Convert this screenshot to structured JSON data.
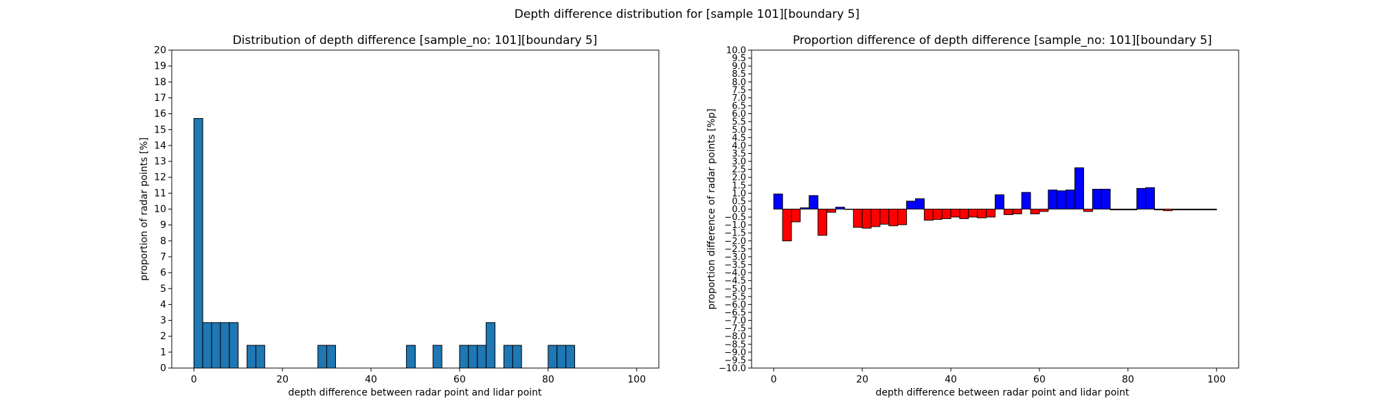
{
  "figure": {
    "suptitle": "Depth difference distribution for [sample 101][boundary 5]"
  },
  "chart_data": [
    {
      "type": "bar",
      "title": "Distribution of depth difference [sample_no: 101][boundary 5]",
      "xlabel": "depth difference between radar point and lidar point",
      "ylabel": "proportion of radar points [%]",
      "xlim": [
        -5,
        105
      ],
      "ylim": [
        0,
        20
      ],
      "xticks": [
        0,
        20,
        40,
        60,
        80,
        100
      ],
      "yticks": [
        0,
        1,
        2,
        3,
        4,
        5,
        6,
        7,
        8,
        9,
        10,
        11,
        12,
        13,
        14,
        15,
        16,
        17,
        18,
        19,
        20
      ],
      "bin_width": 2,
      "grid": false,
      "colors": {
        "bar": "#1f77b4",
        "edge": "#000000"
      },
      "bins": [
        0,
        2,
        4,
        6,
        8,
        12,
        14,
        28,
        30,
        48,
        54,
        60,
        62,
        64,
        66,
        70,
        72,
        80,
        82,
        84
      ],
      "values": [
        15.7,
        2.86,
        2.86,
        2.86,
        2.86,
        1.43,
        1.43,
        1.43,
        1.43,
        1.43,
        1.43,
        1.43,
        1.43,
        1.43,
        2.86,
        1.43,
        1.43,
        1.43,
        1.43,
        1.43
      ]
    },
    {
      "type": "bar",
      "title": "Proportion difference of depth difference [sample_no: 101][boundary 5]",
      "xlabel": "depth difference between radar point and lidar point",
      "ylabel": "proportion difference of radar points [%p]",
      "xlim": [
        -5,
        105
      ],
      "ylim": [
        -10,
        10
      ],
      "xticks": [
        0,
        20,
        40,
        60,
        80,
        100
      ],
      "ytick_step": 0.5,
      "bin_width": 2,
      "grid": false,
      "colors": {
        "positive": "#0000ff",
        "negative": "#ff0000",
        "edge": "#000000"
      },
      "bins": [
        0,
        2,
        4,
        6,
        8,
        10,
        12,
        14,
        16,
        18,
        20,
        22,
        24,
        26,
        28,
        30,
        32,
        34,
        36,
        38,
        40,
        42,
        44,
        46,
        48,
        50,
        52,
        54,
        56,
        58,
        60,
        62,
        64,
        66,
        68,
        70,
        72,
        74,
        76,
        78,
        80,
        82,
        84,
        86,
        88,
        90,
        92,
        94,
        96,
        98
      ],
      "values": [
        0.95,
        -2.0,
        -0.8,
        0.08,
        0.85,
        -1.65,
        -0.2,
        0.12,
        -0.02,
        -1.15,
        -1.2,
        -1.1,
        -0.95,
        -1.05,
        -0.98,
        0.5,
        0.65,
        -0.7,
        -0.65,
        -0.6,
        -0.5,
        -0.6,
        -0.5,
        -0.55,
        -0.5,
        0.9,
        -0.35,
        -0.3,
        1.05,
        -0.3,
        -0.15,
        1.2,
        1.15,
        1.2,
        2.6,
        -0.15,
        1.25,
        1.25,
        -0.05,
        -0.05,
        -0.05,
        1.3,
        1.35,
        -0.05,
        -0.1,
        -0.05,
        -0.05,
        -0.05,
        -0.05,
        -0.05
      ]
    }
  ]
}
